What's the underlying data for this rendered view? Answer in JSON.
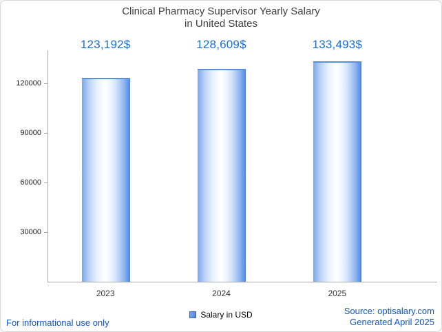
{
  "title": {
    "line1": "Clinical Pharmacy Supervisor Yearly Salary",
    "line2": "in United States"
  },
  "chart_data": {
    "type": "bar",
    "title": "Clinical Pharmacy Supervisor Yearly Salary in United States",
    "categories": [
      "2023",
      "2024",
      "2025"
    ],
    "values": [
      123192,
      128609,
      133493
    ],
    "value_labels": [
      "123,192$",
      "128,609$",
      "133,493$"
    ],
    "series_name": "Salary in USD",
    "xlabel": "",
    "ylabel": "",
    "ylim": [
      0,
      140000
    ],
    "yticks": [
      30000,
      60000,
      90000,
      120000
    ],
    "grid": "off",
    "legend_position": "bottom-center",
    "bar_gradient_left": "#7aa5ec",
    "bar_gradient_right": "#4b87e9",
    "value_label_color": "#1a6ee0"
  },
  "legend": {
    "label": "Salary in USD"
  },
  "footer": {
    "left": "For informational use only",
    "source": "Source: optisalary.com",
    "generated": "Generated April 2025"
  }
}
